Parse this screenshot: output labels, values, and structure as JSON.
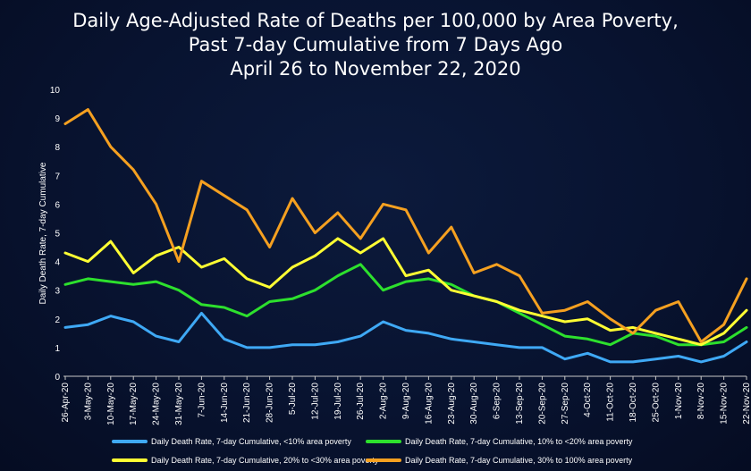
{
  "chart_data": {
    "type": "line",
    "title": [
      "Daily Age-Adjusted Rate of Deaths per 100,000 by Area Poverty,",
      "Past 7-day Cumulative from 7 Days Ago",
      "April 26 to November 22, 2020"
    ],
    "xlabel": "",
    "ylabel": "Daily Death Rate, 7-day Cumulative",
    "ylim": [
      0,
      10
    ],
    "yticks": [
      "0",
      "1",
      "2",
      "3",
      "4",
      "5",
      "6",
      "7",
      "8",
      "9",
      "10"
    ],
    "grid": false,
    "legend_position": "bottom",
    "categories": [
      "26-Apr-20",
      "3-May-20",
      "10-May-20",
      "17-May-20",
      "24-May-20",
      "31-May-20",
      "7-Jun-20",
      "14-Jun-20",
      "21-Jun-20",
      "28-Jun-20",
      "5-Jul-20",
      "12-Jul-20",
      "19-Jul-20",
      "26-Jul-20",
      "2-Aug-20",
      "9-Aug-20",
      "16-Aug-20",
      "23-Aug-20",
      "30-Aug-20",
      "6-Sep-20",
      "13-Sep-20",
      "20-Sep-20",
      "27-Sep-20",
      "4-Oct-20",
      "11-Oct-20",
      "18-Oct-20",
      "25-Oct-20",
      "1-Nov-20",
      "8-Nov-20",
      "15-Nov-20",
      "22-Nov-20"
    ],
    "series": [
      {
        "name": "Daily Death Rate, 7-day Cumulative, <10% area poverty",
        "color": "#3fa9f5",
        "values": [
          1.7,
          1.8,
          2.1,
          1.9,
          1.4,
          1.2,
          2.2,
          1.3,
          1.0,
          1.0,
          1.1,
          1.1,
          1.2,
          1.4,
          1.9,
          1.6,
          1.5,
          1.3,
          1.2,
          1.1,
          1.0,
          1.0,
          0.6,
          0.8,
          0.5,
          0.5,
          0.6,
          0.7,
          0.5,
          0.7,
          1.2
        ]
      },
      {
        "name": "Daily Death Rate, 7-day Cumulative, 10% to <20% area poverty",
        "color": "#2de02d",
        "values": [
          3.2,
          3.4,
          3.3,
          3.2,
          3.3,
          3.0,
          2.5,
          2.4,
          2.1,
          2.6,
          2.7,
          3.0,
          3.5,
          3.9,
          3.0,
          3.3,
          3.4,
          3.2,
          2.8,
          2.6,
          2.2,
          1.8,
          1.4,
          1.3,
          1.1,
          1.5,
          1.4,
          1.1,
          1.1,
          1.2,
          1.7
        ]
      },
      {
        "name": "Daily Death Rate, 7-day Cumulative, 20% to <30% area poverty",
        "color": "#ffff33",
        "values": [
          4.3,
          4.0,
          4.7,
          3.6,
          4.2,
          4.5,
          3.8,
          4.1,
          3.4,
          3.1,
          3.8,
          4.2,
          4.8,
          4.3,
          4.8,
          3.5,
          3.7,
          3.0,
          2.8,
          2.6,
          2.3,
          2.1,
          1.9,
          2.0,
          1.6,
          1.7,
          1.5,
          1.3,
          1.1,
          1.5,
          2.3
        ]
      },
      {
        "name": "Daily Death Rate, 7-day Cumulative, 30% to 100% area poverty",
        "color": "#f5a020",
        "values": [
          8.8,
          9.3,
          8.0,
          7.2,
          6.0,
          4.0,
          6.8,
          6.3,
          5.8,
          4.5,
          6.2,
          5.0,
          5.7,
          4.8,
          6.0,
          5.8,
          4.3,
          5.2,
          3.6,
          3.9,
          3.5,
          2.2,
          2.3,
          2.6,
          2.0,
          1.5,
          2.3,
          2.6,
          1.2,
          1.8,
          3.4
        ]
      }
    ]
  }
}
